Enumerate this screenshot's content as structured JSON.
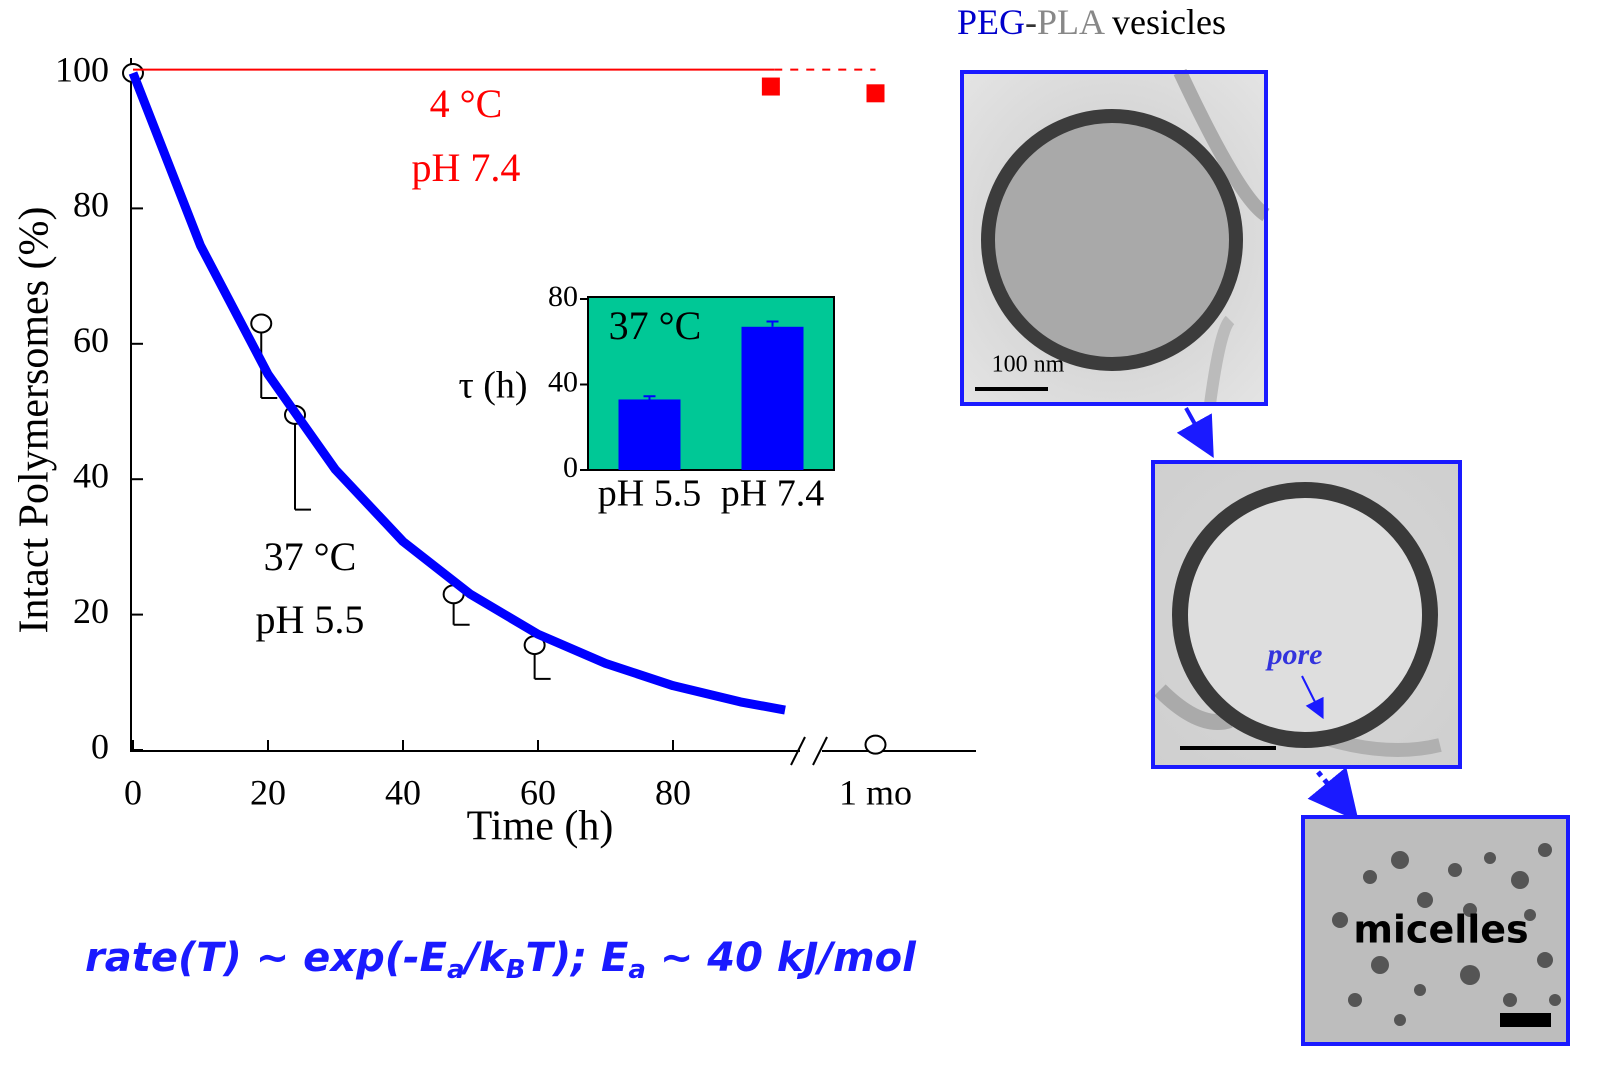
{
  "chart_data": [
    {
      "type": "scatter",
      "xlabel": "Time (h)",
      "ylabel": "Intact Polymersomes (%)",
      "xlim": [
        0,
        125
      ],
      "ylim": [
        0,
        100
      ],
      "xticks": [
        0,
        20,
        40,
        60,
        80,
        {
          "value": 110,
          "label": "1 mo"
        }
      ],
      "yticks": [
        0,
        20,
        40,
        60,
        80,
        100
      ],
      "annotations": [
        "4 °C",
        "pH 7.4",
        "37 °C",
        "pH 5.5"
      ],
      "series": [
        {
          "kind": "scatter",
          "marker": "open-circle",
          "color": "#000000",
          "x": [
            0,
            19,
            24,
            47.5,
            59.5,
            110
          ],
          "values": [
            100,
            63,
            49.5,
            23,
            15.5,
            0.8
          ],
          "errors": [
            null,
            11,
            14,
            4.5,
            5,
            null
          ]
        },
        {
          "kind": "line",
          "color": "#0000ff",
          "width": 9,
          "x": [
            0,
            10,
            20,
            30,
            40,
            50,
            60,
            70,
            80,
            90,
            96.6
          ],
          "values": [
            100,
            74.5,
            55.5,
            41.4,
            30.8,
            23.0,
            17.1,
            12.8,
            9.5,
            7.1,
            5.9
          ]
        },
        {
          "kind": "line",
          "color": "#ff0000",
          "width": 2,
          "x": [
            0,
            95
          ],
          "values": [
            100.5,
            100.5
          ]
        },
        {
          "kind": "line",
          "color": "#ff0000",
          "width": 2,
          "dashed": true,
          "x": [
            95,
            110
          ],
          "values": [
            100.5,
            100.5
          ]
        },
        {
          "kind": "scatter",
          "marker": "square",
          "color": "#ff0000",
          "x": [
            94.5,
            110
          ],
          "values": [
            98,
            97
          ]
        }
      ]
    },
    {
      "type": "bar",
      "ylabel": "τ (h)",
      "annotation": "37 °C",
      "background": "#00c896",
      "color": "#0000ff",
      "categories": [
        "pH 5.5",
        "pH 7.4"
      ],
      "values": [
        33,
        67
      ],
      "errors": [
        1.5,
        2.5
      ],
      "ylim": [
        0,
        80
      ],
      "yticks": [
        0,
        40,
        80
      ]
    }
  ],
  "images": {
    "title": [
      "PEG",
      "-",
      "PLA",
      " vesicles"
    ],
    "scale_label": "100 nm",
    "pore_label": "pore",
    "micelles_label": "micelles"
  },
  "formula": [
    "rate(T) ~ exp(-E",
    "a",
    "/k",
    "B",
    "T);  E",
    "a",
    " ~ 40 kJ/mol"
  ]
}
